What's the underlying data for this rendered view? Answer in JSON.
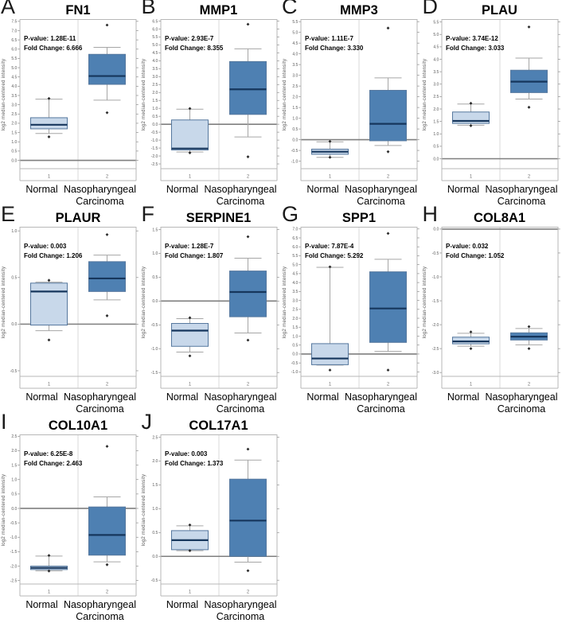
{
  "figure": {
    "y_axis_label": "log2 median-centered intensity",
    "x_tick_labels": [
      "1",
      "2"
    ],
    "group_label_lines": [
      [
        "Normal"
      ],
      [
        "Nasopharyngeal",
        "Carcinoma"
      ]
    ]
  },
  "colors": {
    "normal_fill": "#c8d8ea",
    "carcinoma_fill": "#4e80b2",
    "box_border": "#56789e",
    "median": "#16365c",
    "whisker": "#a6a6a6",
    "zero_line": "#7f7f7f",
    "plot_border": "#b7b7b7",
    "divider": "#d9d9d9",
    "tick_text": "#595959",
    "xtick_text": "#777777",
    "outlier": "#2a2a2a",
    "annotation_text": "#000000"
  },
  "chart_data": [
    {
      "type": "box",
      "panel": "A",
      "title": "FN1",
      "p_text": "P-value: 1.28E-11",
      "fc_text": "Fold Change: 6.666",
      "yticks": {
        "min": 0.0,
        "max": 7.5,
        "step": 0.5
      },
      "ylim": [
        -0.45,
        7.6
      ],
      "series": [
        {
          "name": "Normal",
          "low": 1.45,
          "q1": 1.7,
          "median": 1.92,
          "q3": 2.3,
          "high": 3.3,
          "outliers": [
            3.34,
            1.27
          ]
        },
        {
          "name": "Nasopharyngeal Carcinoma",
          "low": 3.25,
          "q1": 4.1,
          "median": 4.55,
          "q3": 5.72,
          "high": 6.1,
          "outliers": [
            7.3,
            2.57
          ]
        }
      ]
    },
    {
      "type": "box",
      "panel": "B",
      "title": "MMP1",
      "p_text": "P-value: 2.93E-7",
      "fc_text": "Fold Change: 8.355",
      "yticks": {
        "min": -2.5,
        "max": 6.5,
        "step": 0.5
      },
      "ylim": [
        -2.8,
        6.6
      ],
      "series": [
        {
          "name": "Normal",
          "low": -1.75,
          "q1": -1.62,
          "median": -1.53,
          "q3": 0.27,
          "high": 0.95,
          "outliers": [
            0.99,
            -1.8
          ]
        },
        {
          "name": "Nasopharyngeal Carcinoma",
          "low": -0.8,
          "q1": 0.62,
          "median": 2.2,
          "q3": 3.95,
          "high": 4.75,
          "outliers": [
            6.3,
            -2.05
          ]
        }
      ]
    },
    {
      "type": "box",
      "panel": "C",
      "title": "MMP3",
      "p_text": "P-value: 1.11E-7",
      "fc_text": "Fold Change: 3.330",
      "yticks": {
        "min": -1.0,
        "max": 5.5,
        "step": 0.5
      },
      "ylim": [
        -1.35,
        5.6
      ],
      "series": [
        {
          "name": "Normal",
          "low": -0.82,
          "q1": -0.68,
          "median": -0.56,
          "q3": -0.44,
          "high": -0.1,
          "outliers": [
            -0.08,
            -0.82
          ]
        },
        {
          "name": "Nasopharyngeal Carcinoma",
          "low": -0.27,
          "q1": -0.05,
          "median": 0.74,
          "q3": 2.3,
          "high": 2.88,
          "outliers": [
            5.2,
            -0.56
          ]
        }
      ]
    },
    {
      "type": "box",
      "panel": "D",
      "title": "PLAU",
      "p_text": "P-value: 3.74E-12",
      "fc_text": "Fold Change: 3.033",
      "yticks": {
        "min": 0.0,
        "max": 5.5,
        "step": 0.5
      },
      "ylim": [
        -0.4,
        5.6
      ],
      "series": [
        {
          "name": "Normal",
          "low": 1.35,
          "q1": 1.42,
          "median": 1.52,
          "q3": 1.88,
          "high": 2.2,
          "outliers": [
            2.23,
            1.33
          ]
        },
        {
          "name": "Nasopharyngeal Carcinoma",
          "low": 2.4,
          "q1": 2.66,
          "median": 3.1,
          "q3": 3.56,
          "high": 4.05,
          "outliers": [
            5.3,
            2.07
          ]
        }
      ]
    },
    {
      "type": "box",
      "panel": "E",
      "title": "PLAUR",
      "p_text": "P-value: 0.003",
      "fc_text": "Fold Change: 1.206",
      "yticks": {
        "min": -0.5,
        "max": 1.0,
        "step": 0.5
      },
      "ylim": [
        -0.56,
        1.04
      ],
      "series": [
        {
          "name": "Normal",
          "low": -0.07,
          "q1": -0.01,
          "median": 0.35,
          "q3": 0.44,
          "high": 0.45,
          "outliers": [
            0.47,
            -0.17
          ]
        },
        {
          "name": "Nasopharyngeal Carcinoma",
          "low": 0.26,
          "q1": 0.35,
          "median": 0.49,
          "q3": 0.67,
          "high": 0.74,
          "outliers": [
            0.96,
            0.09
          ]
        }
      ]
    },
    {
      "type": "box",
      "panel": "F",
      "title": "SERPINE1",
      "p_text": "P-value: 1.28E-7",
      "fc_text": "Fold Change: 1.807",
      "yticks": {
        "min": -1.5,
        "max": 1.5,
        "step": 0.5
      },
      "ylim": [
        -1.58,
        1.55
      ],
      "series": [
        {
          "name": "Normal",
          "low": -1.07,
          "q1": -0.95,
          "median": -0.62,
          "q3": -0.47,
          "high": -0.37,
          "outliers": [
            -0.35,
            -1.15
          ]
        },
        {
          "name": "Nasopharyngeal Carcinoma",
          "low": -0.67,
          "q1": -0.33,
          "median": 0.19,
          "q3": 0.63,
          "high": 0.9,
          "outliers": [
            1.35,
            -0.82
          ]
        }
      ]
    },
    {
      "type": "box",
      "panel": "G",
      "title": "SPP1",
      "p_text": "P-value: 7.87E-4",
      "fc_text": "Fold Change: 5.292",
      "yticks": {
        "min": -1.0,
        "max": 7.0,
        "step": 0.5
      },
      "ylim": [
        -1.25,
        7.1
      ],
      "series": [
        {
          "name": "Normal",
          "low": -0.62,
          "q1": -0.6,
          "median": -0.25,
          "q3": 0.58,
          "high": 4.85,
          "outliers": [
            4.88,
            -0.9
          ]
        },
        {
          "name": "Nasopharyngeal Carcinoma",
          "low": 0.15,
          "q1": 0.65,
          "median": 2.55,
          "q3": 4.6,
          "high": 5.3,
          "outliers": [
            6.75,
            -0.9
          ]
        }
      ]
    },
    {
      "type": "box",
      "panel": "H",
      "title": "COL8A1",
      "p_text": "P-value: 0.032",
      "fc_text": "Fold Change: 1.052",
      "yticks": {
        "min": -3.0,
        "max": 0.0,
        "step": 0.5
      },
      "ylim": [
        -3.08,
        0.04
      ],
      "series": [
        {
          "name": "Normal",
          "low": -2.45,
          "q1": -2.4,
          "median": -2.35,
          "q3": -2.26,
          "high": -2.18,
          "outliers": [
            -2.15,
            -2.5
          ]
        },
        {
          "name": "Nasopharyngeal Carcinoma",
          "low": -2.42,
          "q1": -2.32,
          "median": -2.25,
          "q3": -2.17,
          "high": -2.08,
          "outliers": [
            -2.04,
            -2.5
          ]
        }
      ]
    },
    {
      "type": "box",
      "panel": "I",
      "title": "COL10A1",
      "p_text": "P-value: 6.25E-8",
      "fc_text": "Fold Change: 2.463",
      "yticks": {
        "min": -2.5,
        "max": 2.5,
        "step": 0.5
      },
      "ylim": [
        -2.62,
        2.55
      ],
      "series": [
        {
          "name": "Normal",
          "low": -2.16,
          "q1": -2.12,
          "median": -2.06,
          "q3": -2.0,
          "high": -1.65,
          "outliers": [
            -1.63,
            -2.17
          ]
        },
        {
          "name": "Nasopharyngeal Carcinoma",
          "low": -1.85,
          "q1": -1.62,
          "median": -0.92,
          "q3": 0.05,
          "high": 0.4,
          "outliers": [
            2.15,
            -1.95
          ]
        }
      ]
    },
    {
      "type": "box",
      "panel": "J",
      "title": "COL17A1",
      "p_text": "P-value: 0.003",
      "fc_text": "Fold Change: 1.373",
      "yticks": {
        "min": -0.5,
        "max": 2.5,
        "step": 0.5
      },
      "ylim": [
        -0.58,
        2.55
      ],
      "series": [
        {
          "name": "Normal",
          "low": 0.12,
          "q1": 0.14,
          "median": 0.34,
          "q3": 0.54,
          "high": 0.64,
          "outliers": [
            0.66,
            0.12
          ]
        },
        {
          "name": "Nasopharyngeal Carcinoma",
          "low": -0.12,
          "q1": 0.0,
          "median": 0.75,
          "q3": 1.62,
          "high": 2.02,
          "outliers": [
            2.25,
            -0.3
          ]
        }
      ]
    }
  ]
}
